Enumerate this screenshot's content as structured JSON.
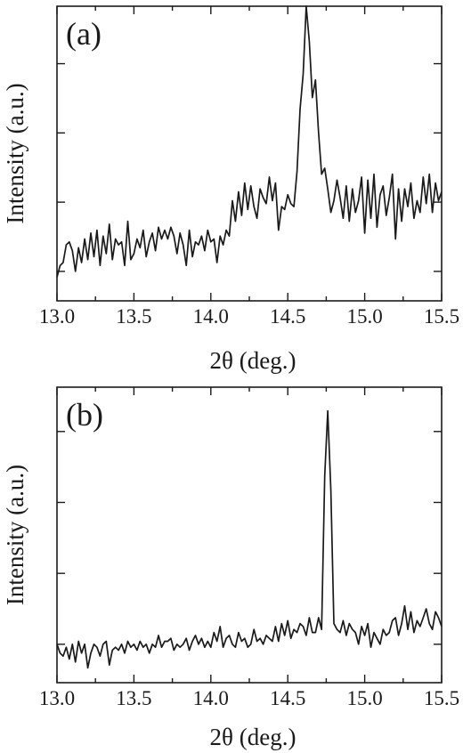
{
  "chart_data": [
    {
      "type": "line",
      "panel_label": "(a)",
      "xlabel": "2θ (deg.)",
      "ylabel": "Intensity (a.u.)",
      "xlim": [
        13.0,
        15.5
      ],
      "ylim": [
        0,
        100
      ],
      "xticks": [
        13.0,
        13.5,
        14.0,
        14.5,
        15.0,
        15.5
      ],
      "xtick_labels": [
        "13.0",
        "13.5",
        "14.0",
        "14.5",
        "15.0",
        "15.5"
      ],
      "xtick_minor": [
        13.25,
        13.75,
        14.25,
        14.75,
        15.25
      ],
      "yticks": [
        10,
        33.5,
        57,
        80.5
      ],
      "ytick_labels": [],
      "grid": false,
      "series": [
        {
          "x": [
            13.0,
            13.02,
            13.04,
            13.06,
            13.08,
            13.1,
            13.12,
            13.14,
            13.16,
            13.18,
            13.2,
            13.22,
            13.24,
            13.26,
            13.28,
            13.3,
            13.32,
            13.34,
            13.36,
            13.38,
            13.4,
            13.42,
            13.44,
            13.46,
            13.48,
            13.5,
            13.52,
            13.54,
            13.56,
            13.58,
            13.6,
            13.62,
            13.64,
            13.66,
            13.68,
            13.7,
            13.72,
            13.74,
            13.76,
            13.78,
            13.8,
            13.82,
            13.84,
            13.86,
            13.88,
            13.9,
            13.92,
            13.94,
            13.96,
            13.98,
            14.0,
            14.02,
            14.04,
            14.06,
            14.08,
            14.1,
            14.12,
            14.14,
            14.16,
            14.18,
            14.2,
            14.22,
            14.24,
            14.26,
            14.28,
            14.3,
            14.32,
            14.34,
            14.36,
            14.38,
            14.4,
            14.42,
            14.44,
            14.46,
            14.48,
            14.5,
            14.52,
            14.54,
            14.56,
            14.58,
            14.6,
            14.62,
            14.64,
            14.66,
            14.68,
            14.7,
            14.72,
            14.74,
            14.76,
            14.78,
            14.8,
            14.82,
            14.84,
            14.86,
            14.88,
            14.9,
            14.92,
            14.94,
            14.96,
            14.98,
            15.0,
            15.02,
            15.04,
            15.06,
            15.08,
            15.1,
            15.12,
            15.14,
            15.16,
            15.18,
            15.2,
            15.22,
            15.24,
            15.26,
            15.28,
            15.3,
            15.32,
            15.34,
            15.36,
            15.38,
            15.4,
            15.42,
            15.44,
            15.46,
            15.48,
            15.5
          ],
          "y": [
            8,
            12,
            13,
            19,
            20,
            17,
            10,
            18,
            13,
            21,
            14,
            23,
            15,
            24,
            12,
            22,
            16,
            26,
            14,
            21,
            19,
            20,
            12,
            27,
            14,
            16,
            21,
            18,
            24,
            15,
            20,
            23,
            17,
            25,
            21,
            24,
            21,
            25,
            22,
            16,
            23,
            19,
            12,
            24,
            15,
            20,
            19,
            22,
            17,
            24,
            20,
            21,
            13,
            22,
            19,
            24,
            22,
            34,
            27,
            37,
            29,
            40,
            31,
            39,
            32,
            28,
            38,
            35,
            33,
            42,
            34,
            40,
            24,
            32,
            31,
            36,
            33,
            32,
            44,
            65,
            77,
            100,
            88,
            69,
            75,
            57,
            43,
            45,
            38,
            30,
            34,
            41,
            35,
            28,
            39,
            27,
            38,
            30,
            34,
            42,
            23,
            41,
            28,
            43,
            25,
            36,
            39,
            29,
            35,
            43,
            21,
            38,
            27,
            38,
            32,
            40,
            28,
            34,
            30,
            42,
            33,
            43,
            30,
            40,
            34,
            37
          ]
        }
      ]
    },
    {
      "type": "line",
      "panel_label": "(b)",
      "xlabel": "2θ (deg.)",
      "ylabel": "Intensity (a.u.)",
      "xlim": [
        13.0,
        15.5
      ],
      "ylim": [
        0,
        100
      ],
      "xticks": [
        13.0,
        13.5,
        14.0,
        14.5,
        15.0,
        15.5
      ],
      "xtick_labels": [
        "13.0",
        "13.5",
        "14.0",
        "14.5",
        "15.0",
        "15.5"
      ],
      "xtick_minor": [
        13.25,
        13.75,
        14.25,
        14.75,
        15.25
      ],
      "yticks": [
        13,
        37,
        61,
        85
      ],
      "ytick_labels": [],
      "grid": false,
      "series": [
        {
          "x": [
            13.0,
            13.02,
            13.04,
            13.06,
            13.08,
            13.1,
            13.12,
            13.14,
            13.16,
            13.18,
            13.2,
            13.22,
            13.24,
            13.26,
            13.28,
            13.3,
            13.32,
            13.34,
            13.36,
            13.38,
            13.4,
            13.42,
            13.44,
            13.46,
            13.48,
            13.5,
            13.52,
            13.54,
            13.56,
            13.58,
            13.6,
            13.62,
            13.64,
            13.66,
            13.68,
            13.7,
            13.72,
            13.74,
            13.76,
            13.78,
            13.8,
            13.82,
            13.84,
            13.86,
            13.88,
            13.9,
            13.92,
            13.94,
            13.96,
            13.98,
            14.0,
            14.02,
            14.04,
            14.06,
            14.08,
            14.1,
            14.12,
            14.14,
            14.16,
            14.18,
            14.2,
            14.22,
            14.24,
            14.26,
            14.28,
            14.3,
            14.32,
            14.34,
            14.36,
            14.38,
            14.4,
            14.42,
            14.44,
            14.46,
            14.48,
            14.5,
            14.52,
            14.54,
            14.56,
            14.58,
            14.6,
            14.62,
            14.64,
            14.66,
            14.68,
            14.7,
            14.72,
            14.74,
            14.76,
            14.78,
            14.8,
            14.82,
            14.84,
            14.86,
            14.88,
            14.9,
            14.92,
            14.94,
            14.96,
            14.98,
            15.0,
            15.02,
            15.04,
            15.06,
            15.08,
            15.1,
            15.12,
            15.14,
            15.16,
            15.18,
            15.2,
            15.22,
            15.24,
            15.26,
            15.28,
            15.3,
            15.32,
            15.34,
            15.36,
            15.38,
            15.4,
            15.42,
            15.44,
            15.46,
            15.48,
            15.5
          ],
          "y": [
            13,
            10,
            9,
            12,
            8,
            13,
            7,
            14,
            10,
            13,
            5,
            10,
            13,
            12,
            9,
            13,
            14,
            6,
            11,
            12,
            11,
            13,
            10,
            14,
            12,
            13,
            11,
            14,
            12,
            13,
            10,
            13,
            12,
            16,
            12,
            14,
            14,
            15,
            11,
            13,
            12,
            13,
            15,
            11,
            14,
            16,
            13,
            15,
            12,
            14,
            12,
            17,
            14,
            19,
            12,
            15,
            16,
            13,
            12,
            17,
            14,
            15,
            12,
            13,
            18,
            14,
            15,
            13,
            16,
            15,
            14,
            19,
            14,
            20,
            16,
            21,
            15,
            18,
            17,
            20,
            19,
            16,
            22,
            17,
            17,
            22,
            18,
            70,
            92,
            65,
            20,
            18,
            17,
            21,
            16,
            20,
            18,
            17,
            13,
            19,
            16,
            20,
            12,
            17,
            15,
            13,
            18,
            16,
            17,
            21,
            22,
            16,
            20,
            26,
            18,
            24,
            17,
            21,
            19,
            22,
            25,
            20,
            18,
            24,
            22,
            19
          ]
        }
      ]
    }
  ]
}
